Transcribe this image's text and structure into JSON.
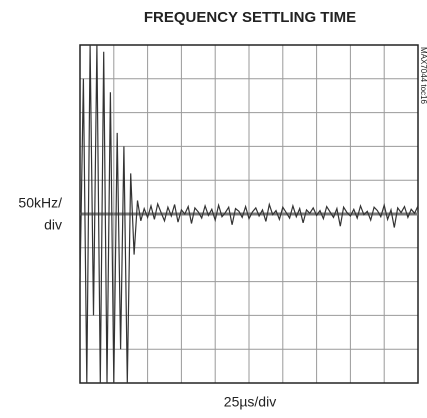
{
  "chart_data": {
    "type": "line",
    "title": "FREQUENCY SETTLING TIME",
    "ylabel_lines": [
      "50kHz/",
      "div"
    ],
    "xlabel": "25µs/div",
    "side_note": "MAX7044 toc16",
    "color": "#333333",
    "grid": true,
    "xlim": [
      0,
      250
    ],
    "ylim": [
      -250,
      250
    ],
    "xticks": [
      0,
      25,
      50,
      75,
      100,
      125,
      150,
      175,
      200,
      225,
      250
    ],
    "yticks": [
      -250,
      -200,
      -150,
      -100,
      -50,
      0,
      50,
      100,
      150,
      200,
      250
    ],
    "x": [
      0,
      2.5,
      5,
      7.5,
      10,
      12.5,
      15,
      17.5,
      20,
      22.5,
      25,
      27.5,
      30,
      32.5,
      35,
      37.5,
      40,
      42.5,
      45,
      47.5,
      50,
      52.5,
      55,
      57.5,
      60,
      62.5,
      65,
      67.5,
      70,
      72.5,
      75,
      77.5,
      80,
      82.5,
      85,
      87.5,
      90,
      92.5,
      95,
      97.5,
      100,
      102.5,
      105,
      107.5,
      110,
      112.5,
      115,
      117.5,
      120,
      122.5,
      125,
      127.5,
      130,
      132.5,
      135,
      137.5,
      140,
      142.5,
      145,
      147.5,
      150,
      152.5,
      155,
      157.5,
      160,
      162.5,
      165,
      167.5,
      170,
      172.5,
      175,
      177.5,
      180,
      182.5,
      185,
      187.5,
      190,
      192.5,
      195,
      197.5,
      200,
      202.5,
      205,
      207.5,
      210,
      212.5,
      215,
      217.5,
      220,
      222.5,
      225,
      227.5,
      230,
      232.5,
      235,
      237.5,
      240,
      242.5,
      245,
      247.5,
      250
    ],
    "values": [
      -100,
      200,
      -250,
      250,
      -150,
      250,
      -250,
      240,
      -250,
      180,
      -250,
      120,
      -200,
      100,
      -250,
      60,
      -60,
      20,
      -10,
      8,
      -5,
      12,
      -8,
      15,
      2,
      -10,
      10,
      -3,
      14,
      -12,
      6,
      0,
      11,
      -14,
      9,
      3,
      -6,
      12,
      -2,
      7,
      -9,
      13,
      -4,
      2,
      10,
      -16,
      8,
      4,
      -5,
      11,
      -7,
      3,
      9,
      -3,
      6,
      -11,
      14,
      -1,
      5,
      -8,
      10,
      2,
      -6,
      12,
      -4,
      8,
      -13,
      6,
      1,
      9,
      -2,
      5,
      -7,
      11,
      3,
      -5,
      8,
      -18,
      10,
      2,
      -3,
      7,
      -6,
      12,
      -1,
      4,
      -9,
      10,
      5,
      -4,
      13,
      -8,
      6,
      -20,
      9,
      2,
      11,
      -5,
      7,
      1,
      12
    ]
  }
}
